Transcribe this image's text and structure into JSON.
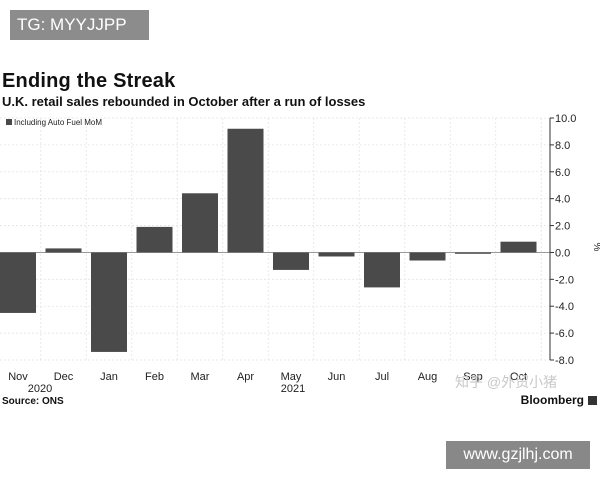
{
  "watermarks": {
    "top_badge": "TG: MYYJJPP",
    "zhihu": "知乎 @外贸小猪",
    "site": "www.gzjlhj.com"
  },
  "header": {
    "title": "Ending the Streak",
    "subtitle": "U.K. retail sales rebounded in October after a run of losses"
  },
  "footer": {
    "source": "Source: ONS",
    "brand": "Bloomberg"
  },
  "colors": {
    "bar": "#4a4a4a",
    "grid": "#e3e3e3",
    "zero_line": "#999999",
    "axis": "#333333"
  },
  "chart_data": {
    "type": "bar",
    "categories": [
      "Nov",
      "Dec",
      "Jan",
      "Feb",
      "Mar",
      "Apr",
      "May",
      "Jun",
      "Jul",
      "Aug",
      "Sep",
      "Oct"
    ],
    "year_labels": [
      {
        "label": "2020",
        "category_index": 0
      },
      {
        "label": "2021",
        "category_index": 6
      }
    ],
    "series": [
      {
        "name": "Including Auto Fuel MoM",
        "values": [
          -4.5,
          0.3,
          -7.4,
          1.9,
          4.4,
          9.2,
          -1.3,
          -0.3,
          -2.6,
          -0.6,
          -0.1,
          0.8
        ]
      }
    ],
    "ylim": [
      -8,
      10
    ],
    "yticks": [
      10,
      8,
      6,
      4,
      2,
      0,
      -2,
      -4,
      -6,
      -8
    ],
    "ytick_labels": [
      "10.0",
      "8.0",
      "6.0",
      "4.0",
      "2.0",
      "0.0",
      "-2.0",
      "-4.0",
      "-6.0",
      "-8.0"
    ],
    "ylabel": "%",
    "y_axis_position": "right",
    "legend_position": "top-left",
    "grid": true
  }
}
